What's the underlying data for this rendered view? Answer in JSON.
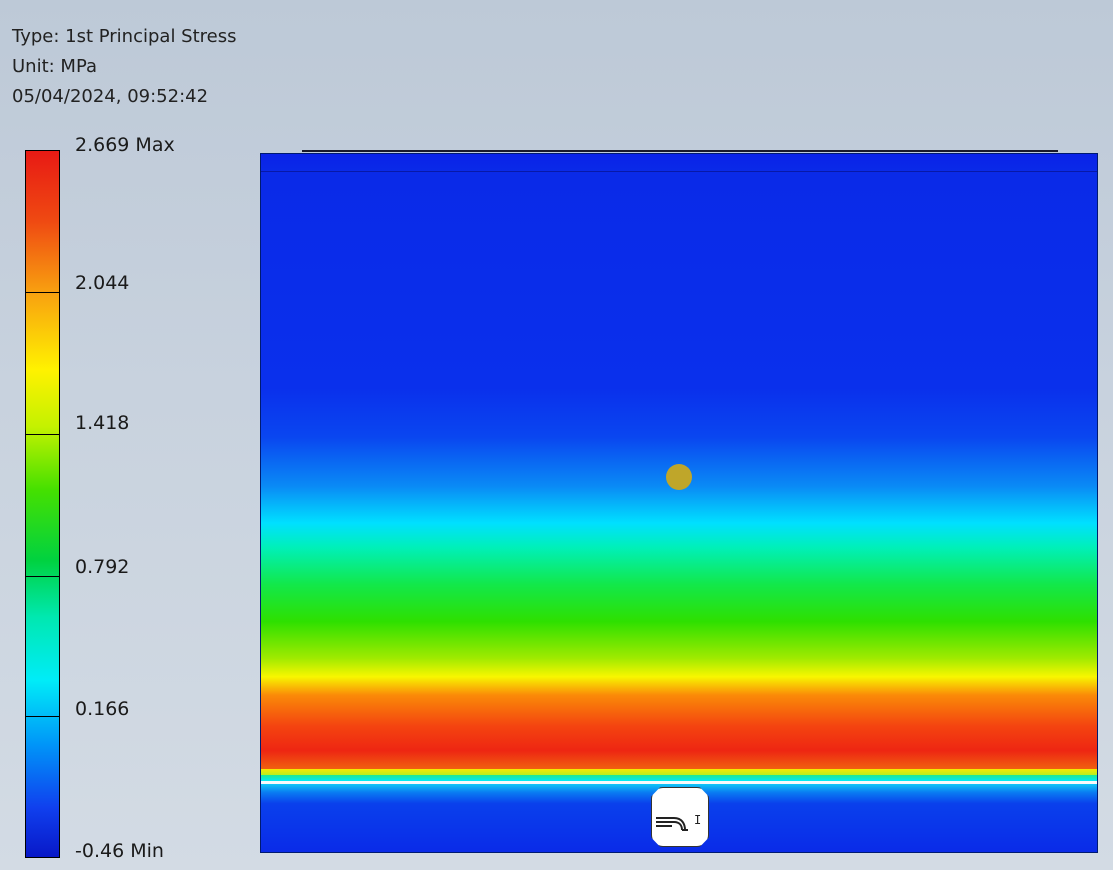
{
  "info": {
    "type": "Type: 1st Principal Stress",
    "unit": "Unit: MPa",
    "timestamp": "05/04/2024, 09:52:42"
  },
  "legend": {
    "max_label": "2.669 Max",
    "min_label": "-0.46 Min",
    "ticks": [
      "2.044",
      "1.418",
      "0.792",
      "0.166"
    ],
    "colors": {
      "max": "#e81a14",
      "mid": "#45e000",
      "min": "#0818c8"
    }
  },
  "model": {
    "background_color": "#0a22e8",
    "probe_color": "#bfa62a",
    "probe_icon": "probe-point-icon",
    "constraint_icon": "bearing-load-icon",
    "constraint_symbol": "I"
  }
}
